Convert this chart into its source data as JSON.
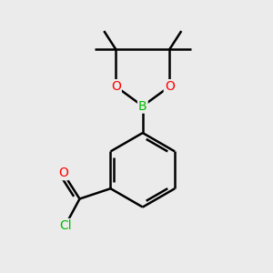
{
  "background_color": "#ebebeb",
  "bond_color": "#000000",
  "atom_colors": {
    "O": "#ff0000",
    "B": "#00bb00",
    "Cl": "#00bb00",
    "C": "#000000"
  },
  "figsize": [
    3.0,
    3.0
  ],
  "dpi": 100,
  "xlim": [
    -2.0,
    2.0
  ],
  "ylim": [
    -2.8,
    2.4
  ]
}
